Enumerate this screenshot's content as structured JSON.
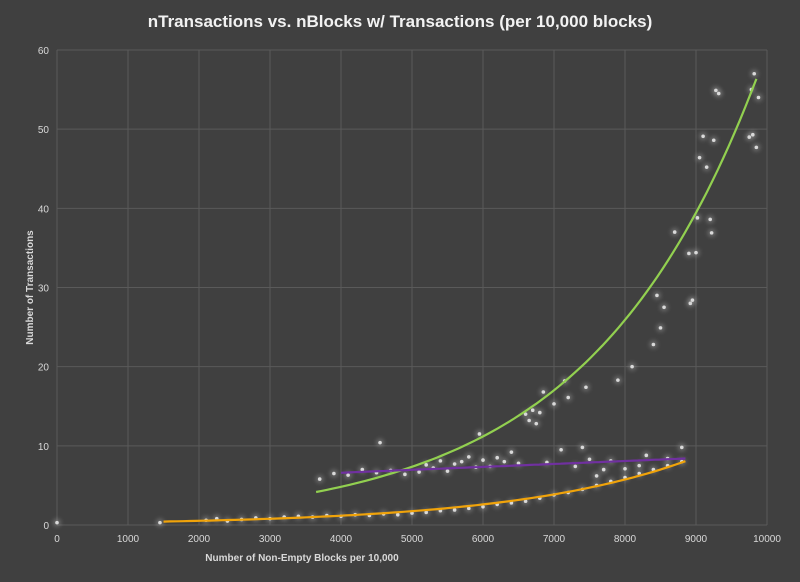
{
  "chart_data": {
    "type": "scatter",
    "title": "nTransactions vs. nBlocks w/ Transactions (per 10,000 blocks)",
    "xlabel": "Number of Non-Empty Blocks per 10,000",
    "ylabel": "Number of Transactions",
    "xlim": [
      0,
      10000
    ],
    "ylim": [
      0,
      60
    ],
    "x_ticks": [
      0,
      1000,
      2000,
      3000,
      4000,
      5000,
      6000,
      7000,
      8000,
      9000,
      10000
    ],
    "y_ticks": [
      0,
      10,
      20,
      30,
      40,
      50,
      60
    ],
    "grid": true,
    "legend": "none",
    "colors": {
      "background": "#404040",
      "grid": "#5a5a5a",
      "points": "#d9d9d9",
      "trend_green": "#92d050",
      "trend_purple": "#7030a0",
      "trend_orange": "#f0a30a"
    },
    "series": [
      {
        "points": [
          [
            0,
            0.3
          ],
          [
            1450,
            0.3
          ],
          [
            2100,
            0.6
          ],
          [
            2250,
            0.8
          ],
          [
            2400,
            0.5
          ],
          [
            2600,
            0.7
          ],
          [
            2800,
            0.9
          ],
          [
            3000,
            0.8
          ],
          [
            3200,
            1.0
          ],
          [
            3400,
            1.1
          ],
          [
            3600,
            1.0
          ],
          [
            3800,
            1.2
          ],
          [
            4000,
            1.1
          ],
          [
            4200,
            1.3
          ],
          [
            4400,
            1.2
          ],
          [
            4600,
            1.4
          ],
          [
            4800,
            1.3
          ],
          [
            5000,
            1.5
          ],
          [
            5200,
            1.6
          ],
          [
            5400,
            1.8
          ],
          [
            5600,
            1.9
          ],
          [
            5800,
            2.1
          ],
          [
            6000,
            2.3
          ],
          [
            6200,
            2.6
          ],
          [
            6400,
            2.8
          ],
          [
            6600,
            3.0
          ],
          [
            6800,
            3.4
          ],
          [
            7000,
            3.8
          ],
          [
            7200,
            4.1
          ],
          [
            7400,
            4.5
          ],
          [
            7600,
            5.0
          ],
          [
            7800,
            5.5
          ],
          [
            8000,
            6.0
          ],
          [
            8200,
            6.5
          ],
          [
            8400,
            7.0
          ],
          [
            8600,
            7.5
          ],
          [
            8800,
            8.0
          ],
          [
            3700,
            5.8
          ],
          [
            3900,
            6.5
          ],
          [
            4100,
            6.3
          ],
          [
            4300,
            7.0
          ],
          [
            4500,
            6.6
          ],
          [
            4550,
            10.4
          ],
          [
            4700,
            6.9
          ],
          [
            4900,
            6.4
          ],
          [
            5100,
            6.7
          ],
          [
            5200,
            7.6
          ],
          [
            5300,
            7.2
          ],
          [
            5400,
            8.1
          ],
          [
            5500,
            6.8
          ],
          [
            5600,
            7.7
          ],
          [
            5700,
            8.0
          ],
          [
            5800,
            8.6
          ],
          [
            5900,
            7.3
          ],
          [
            5950,
            11.5
          ],
          [
            6000,
            8.2
          ],
          [
            6100,
            7.4
          ],
          [
            6200,
            8.5
          ],
          [
            6300,
            8.0
          ],
          [
            6400,
            9.2
          ],
          [
            6500,
            7.8
          ],
          [
            6600,
            14.0
          ],
          [
            6650,
            13.2
          ],
          [
            6700,
            14.5
          ],
          [
            6750,
            12.8
          ],
          [
            6800,
            14.2
          ],
          [
            6850,
            16.8
          ],
          [
            6900,
            7.9
          ],
          [
            7000,
            15.3
          ],
          [
            7100,
            9.5
          ],
          [
            7150,
            18.2
          ],
          [
            7200,
            16.1
          ],
          [
            7300,
            7.4
          ],
          [
            7400,
            9.8
          ],
          [
            7450,
            17.4
          ],
          [
            7500,
            8.3
          ],
          [
            7600,
            6.2
          ],
          [
            7700,
            7.0
          ],
          [
            7800,
            8.1
          ],
          [
            7900,
            18.3
          ],
          [
            8000,
            7.1
          ],
          [
            8100,
            20.0
          ],
          [
            8200,
            7.5
          ],
          [
            8300,
            8.8
          ],
          [
            8400,
            22.8
          ],
          [
            8450,
            29.0
          ],
          [
            8500,
            24.9
          ],
          [
            8550,
            27.5
          ],
          [
            8600,
            8.4
          ],
          [
            8700,
            37.0
          ],
          [
            8800,
            9.8
          ],
          [
            8900,
            34.3
          ],
          [
            8920,
            28.0
          ],
          [
            8950,
            28.4
          ],
          [
            9000,
            34.4
          ],
          [
            9020,
            38.8
          ],
          [
            9050,
            46.4
          ],
          [
            9100,
            49.1
          ],
          [
            9150,
            45.2
          ],
          [
            9200,
            38.6
          ],
          [
            9220,
            36.9
          ],
          [
            9250,
            48.6
          ],
          [
            9280,
            54.9
          ],
          [
            9320,
            54.5
          ],
          [
            9750,
            49.0
          ],
          [
            9780,
            55.0
          ],
          [
            9800,
            49.3
          ],
          [
            9820,
            57.0
          ],
          [
            9850,
            47.7
          ],
          [
            9880,
            54.0
          ]
        ]
      }
    ],
    "trendlines": [
      {
        "color_key": "trend_green",
        "type": "exponential",
        "x_range": [
          3650,
          9850
        ],
        "a": 0.9,
        "b": 0.00042
      },
      {
        "color_key": "trend_purple",
        "type": "linear",
        "x_range": [
          4000,
          8850
        ],
        "y_start": 6.6,
        "y_end": 8.4
      },
      {
        "color_key": "trend_orange",
        "type": "exponential",
        "x_range": [
          1500,
          8850
        ],
        "a": 0.24,
        "b": 0.000397
      }
    ]
  }
}
